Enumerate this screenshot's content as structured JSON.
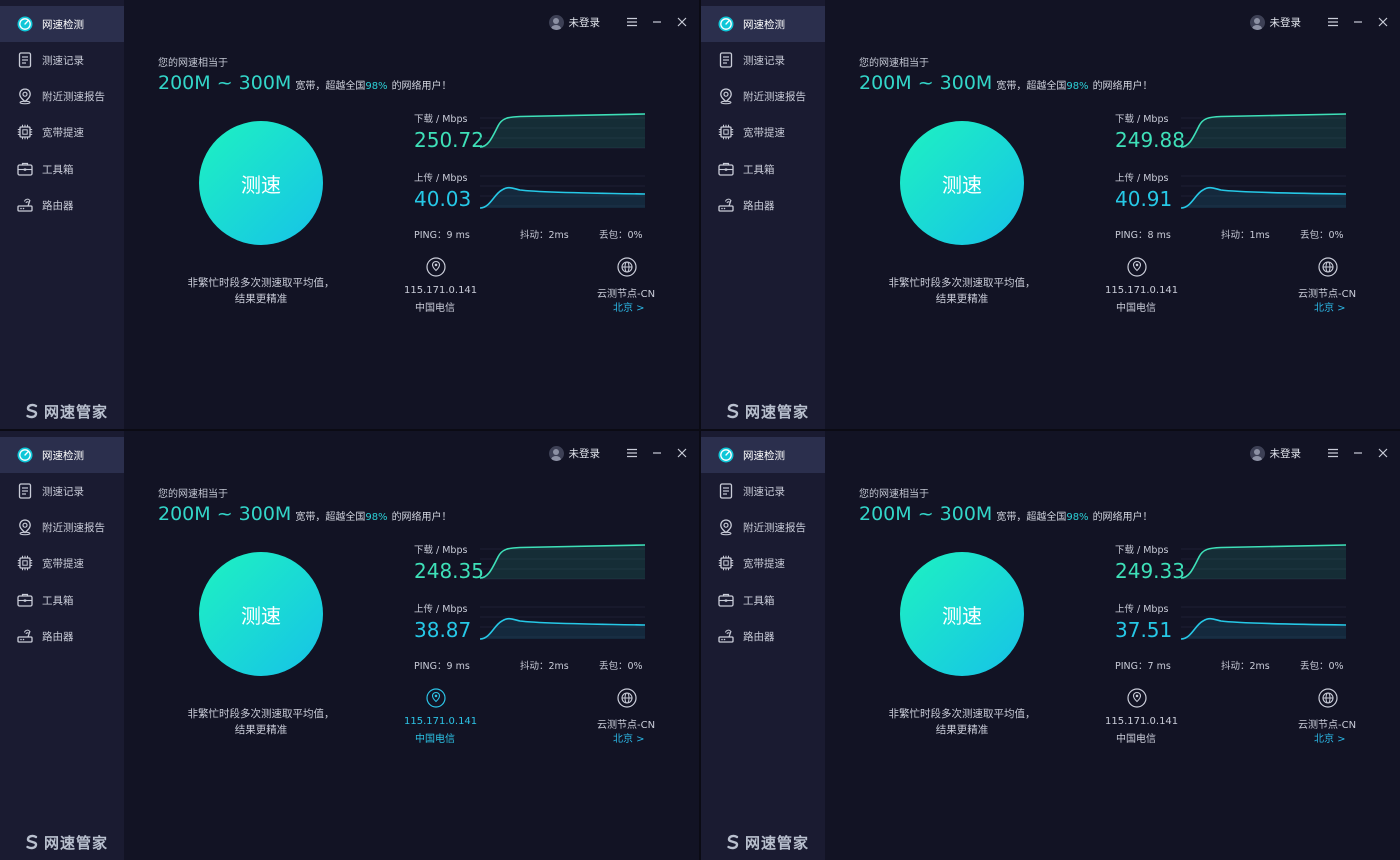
{
  "colors": {
    "accent": "#2cc3e6",
    "download": "#3ee0b8",
    "upload": "#26c8e6",
    "background": "#121324",
    "sidebar": "#1a1b31"
  },
  "sidebar": {
    "items": [
      {
        "label": "网速检测",
        "icon": "speedometer-icon",
        "active": true
      },
      {
        "label": "测速记录",
        "icon": "document-icon",
        "active": false
      },
      {
        "label": "附近测速报告",
        "icon": "location-pin-icon",
        "active": false
      },
      {
        "label": "宽带提速",
        "icon": "chip-icon",
        "active": false
      },
      {
        "label": "工具箱",
        "icon": "toolbox-icon",
        "active": false
      },
      {
        "label": "路由器",
        "icon": "router-icon",
        "active": false
      }
    ],
    "brand": "网速管家"
  },
  "titlebar": {
    "login": "未登录"
  },
  "result": {
    "subtitle": "您的网速相当于",
    "speed_range": "200M ~ 300M",
    "broadband_text": "宽带，超越全国",
    "percent": "98%",
    "suffix": "的网络用户！"
  },
  "test_button": "测速",
  "hint": "非繁忙时段多次测速取平均值，结果更精准",
  "labels": {
    "download": "下载 / Mbps",
    "upload": "上传 / Mbps"
  },
  "network": {
    "ip": "115.171.0.141",
    "isp": "中国电信",
    "node": "云测节点-CN",
    "city": "北京 >"
  },
  "panels": [
    {
      "download": "250.72",
      "upload": "40.03",
      "ping": "PING：9 ms",
      "jitter": "抖动：2ms",
      "loss": "丢包：0%",
      "ip_highlight": false
    },
    {
      "download": "249.88",
      "upload": "40.91",
      "ping": "PING：8 ms",
      "jitter": "抖动：1ms",
      "loss": "丢包：0%",
      "ip_highlight": false
    },
    {
      "download": "248.35",
      "upload": "38.87",
      "ping": "PING：9 ms",
      "jitter": "抖动：2ms",
      "loss": "丢包：0%",
      "ip_highlight": true
    },
    {
      "download": "249.33",
      "upload": "37.51",
      "ping": "PING：7 ms",
      "jitter": "抖动：2ms",
      "loss": "丢包：0%",
      "ip_highlight": false
    }
  ]
}
